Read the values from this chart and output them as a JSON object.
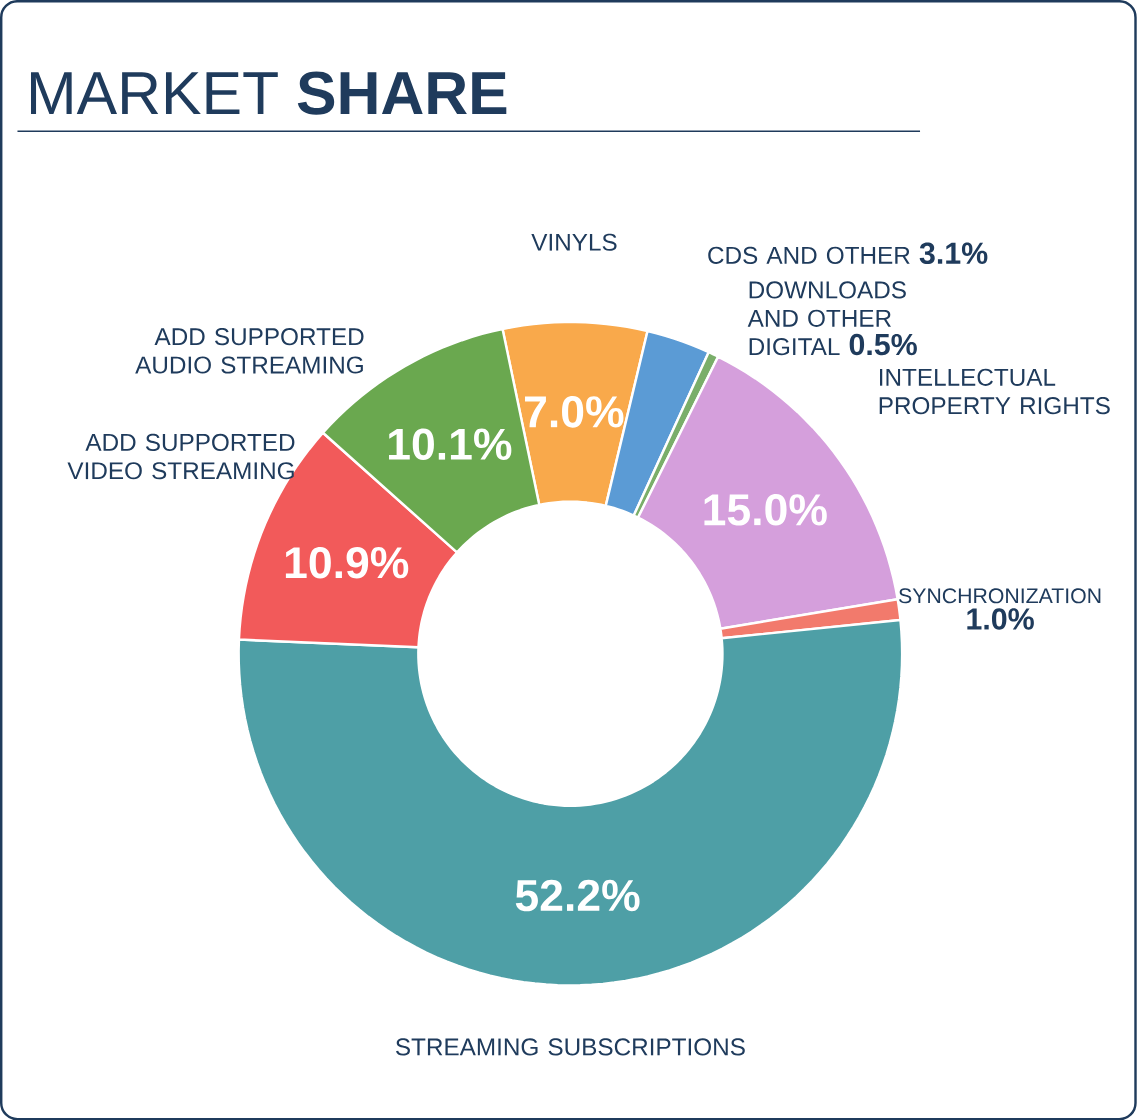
{
  "chart_data": {
    "type": "donut",
    "title": "MARKET **SHARE**",
    "categories": [
      "VINYLS",
      "CDS AND OTHER",
      "DOWNLOADS AND OTHER DIGITAL",
      "INTELLECTUAL PROPERTY RIGHTS",
      "SYNCHRONIZATION",
      "STREAMING SUBSCRIPTIONS",
      "ADD SUPPORTED VIDEO STREAMING",
      "ADD SUPPORTED AUDIO STREAMING"
    ],
    "values": [
      7.0,
      3.1,
      0.5,
      15.0,
      1.0,
      52.2,
      10.9,
      10.1
    ],
    "colors": [
      "#f9a94b",
      "#5b9bd5",
      "#7aae6a",
      "#d59fdc",
      "#f27a6c",
      "#4e9fa6",
      "#f25a5a",
      "#6aa84f"
    ],
    "value_labels": [
      "7.0%",
      "3.1%",
      "0.5%",
      "15.0%",
      "1.0%",
      "52.2%",
      "10.9%",
      "10.1%"
    ]
  }
}
